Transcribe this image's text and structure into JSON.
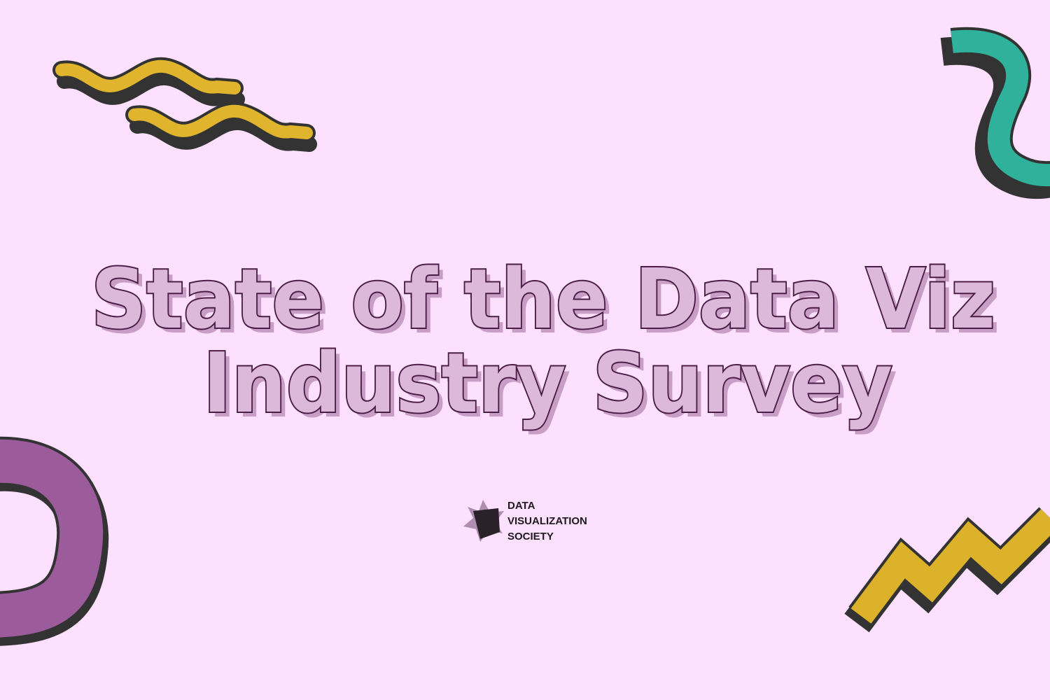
{
  "title": {
    "lines": [
      "State of the Data Viz",
      "Industry Survey"
    ]
  },
  "logo": {
    "lines": [
      "DATA",
      "VISUALIZATION",
      "SOCIETY"
    ]
  }
}
